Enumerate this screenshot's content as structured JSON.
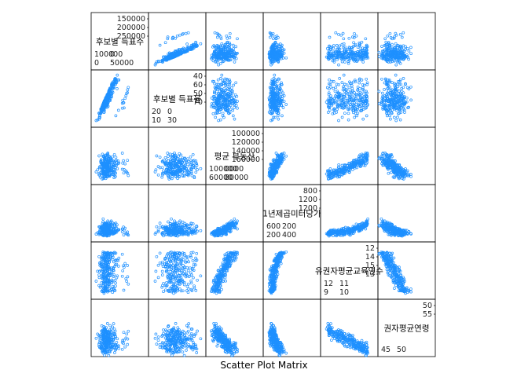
{
  "chart_data": {
    "type": "scatter",
    "subtype": "scatterplot-matrix",
    "xlabel": "Scatter Plot Matrix",
    "point_color": "#1e90ff",
    "variables": [
      {
        "name": "권자평균연령",
        "top_ticks": [
          "50",
          "55"
        ],
        "bottom_ticks": [
          "45",
          "50"
        ],
        "range": [
          42,
          58
        ]
      },
      {
        "name": "유권자평균교육연수",
        "top_ticks": [
          "12",
          "14",
          "15",
          "13"
        ],
        "bottom_ticks": [
          "9",
          "10",
          "12",
          "11"
        ],
        "range": [
          8.5,
          15.5
        ]
      },
      {
        "name": "1년제곱미터당가",
        "top_ticks": [
          "800",
          "1200",
          "1200"
        ],
        "bottom_ticks": [
          "200",
          "400",
          "600",
          "200"
        ],
        "range": [
          100,
          1400
        ]
      },
      {
        "name": "평균 부동산",
        "top_ticks": [
          "100000",
          "120000",
          "140000",
          "160000"
        ],
        "bottom_ticks": [
          "60000",
          "80000",
          "100000",
          "0000"
        ],
        "range": [
          50000,
          170000
        ]
      },
      {
        "name": "후보별 득표율",
        "top_ticks": [
          "40",
          "60",
          "50",
          "70"
        ],
        "bottom_ticks": [
          "10",
          "30",
          "20",
          "0"
        ],
        "range": [
          0,
          75
        ]
      },
      {
        "name": "후보별 득표수",
        "top_ticks": [
          "150000",
          "200000",
          "250000"
        ],
        "bottom_ticks": [
          "0",
          "50000",
          "100000",
          "0"
        ],
        "range": [
          0,
          260000
        ]
      }
    ],
    "relationships": [
      {
        "x": "유권자평균교육연수",
        "y": "권자평균연령",
        "trend": "strong negative"
      },
      {
        "x": "1년제곱미터당가",
        "y": "권자평균연령",
        "trend": "negative"
      },
      {
        "x": "평균 부동산",
        "y": "권자평균연령",
        "trend": "negative"
      },
      {
        "x": "1년제곱미터당가",
        "y": "유권자평균교육연수",
        "trend": "positive"
      },
      {
        "x": "평균 부동산",
        "y": "유권자평균교육연수",
        "trend": "positive"
      },
      {
        "x": "평균 부동산",
        "y": "1년제곱미터당가",
        "trend": "positive"
      },
      {
        "x": "후보별 득표율",
        "y": "후보별 득표수",
        "trend": "positive"
      }
    ]
  }
}
